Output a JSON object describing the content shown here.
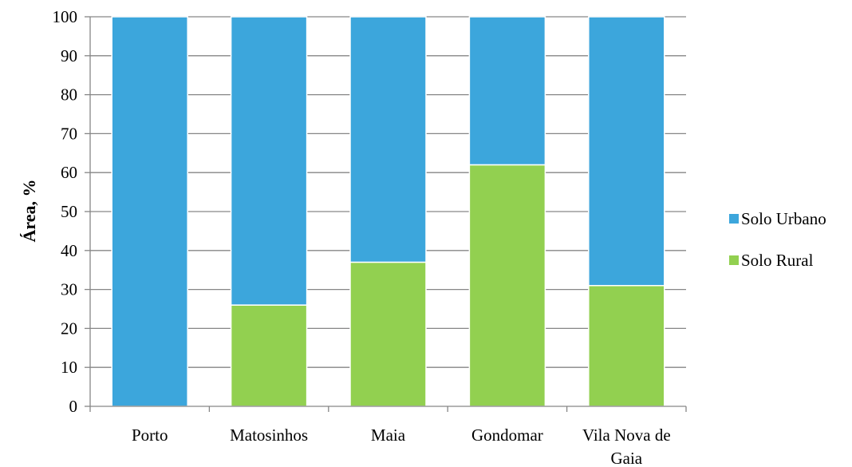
{
  "chart_data": {
    "type": "bar",
    "stacked": true,
    "categories": [
      "Porto",
      "Matosinhos",
      "Maia",
      "Gondomar",
      "Vila Nova de Gaia"
    ],
    "series": [
      {
        "name": "Solo Rural",
        "values": [
          0,
          26,
          37,
          62,
          31
        ],
        "color": "#92d050"
      },
      {
        "name": "Solo Urbano",
        "values": [
          100,
          74,
          63,
          38,
          69
        ],
        "color": "#3ca6dc"
      }
    ],
    "title": "",
    "xlabel": "",
    "ylabel": "Área, %",
    "ylim": [
      0,
      100
    ],
    "yticks": [
      0,
      10,
      20,
      30,
      40,
      50,
      60,
      70,
      80,
      90,
      100
    ],
    "grid": true,
    "legend_position": "right",
    "legend_order": [
      "Solo Urbano",
      "Solo Rural"
    ]
  }
}
